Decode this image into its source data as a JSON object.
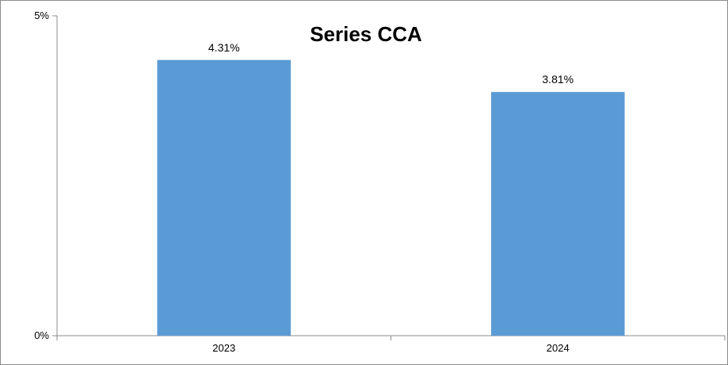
{
  "chart_data": {
    "type": "bar",
    "title": "Series CCA",
    "categories": [
      "2023",
      "2024"
    ],
    "values": [
      4.31,
      3.81
    ],
    "value_labels": [
      "4.31%",
      "3.81%"
    ],
    "ylim": [
      0,
      5
    ],
    "y_ticks": [
      {
        "value": 0,
        "label": "0%"
      },
      {
        "value": 5,
        "label": "5%"
      }
    ],
    "xlabel": "",
    "ylabel": "",
    "grid": false,
    "legend": "none",
    "colors": {
      "bar": "#5b9bd5",
      "axis": "#8c8c8c"
    }
  }
}
